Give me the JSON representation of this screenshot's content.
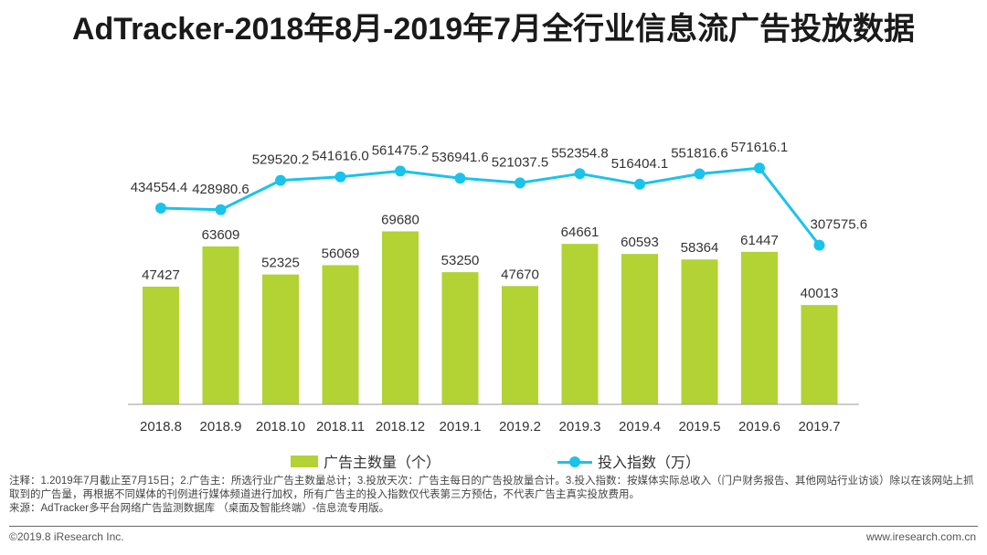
{
  "title": "AdTracker-2018年8月-2019年7月全行业信息流广告投放数据",
  "chart_data": {
    "type": "bar+line",
    "categories": [
      "2018.8",
      "2018.9",
      "2018.10",
      "2018.11",
      "2018.12",
      "2019.1",
      "2019.2",
      "2019.3",
      "2019.4",
      "2019.5",
      "2019.6",
      "2019.7"
    ],
    "series": [
      {
        "name": "广告主数量（个）",
        "type": "bar",
        "color": "#b3d234",
        "values": [
          47427,
          63609,
          52325,
          56069,
          69680,
          53250,
          47670,
          64661,
          60593,
          58364,
          61447,
          40013
        ],
        "labels": [
          "47427",
          "63609",
          "52325",
          "56069",
          "69680",
          "53250",
          "47670",
          "64661",
          "60593",
          "58364",
          "61447",
          "40013"
        ]
      },
      {
        "name": "投入指数（万）",
        "type": "line",
        "color": "#1ac3ec",
        "values": [
          434554.4,
          428980.6,
          529520.2,
          541616.0,
          561475.2,
          536941.6,
          521037.5,
          552354.8,
          516404.1,
          551816.6,
          571616.1,
          307575.6
        ],
        "labels": [
          "434554.4",
          "428980.6",
          "529520.2",
          "541616.0",
          "561475.2",
          "536941.6",
          "521037.5",
          "552354.8",
          "516404.1",
          "551816.6",
          "571616.1",
          "307575.6"
        ]
      }
    ],
    "legend_position": "bottom",
    "grid": false
  },
  "notes": [
    "注释：1.2019年7月截止至7月15日；2.广告主：所选行业广告主数量总计；3.投放天次：广告主每日的广告投放量合计。3.投入指数：按媒体实际总收入（门户财务报告、其他网站行业访谈）除以在该网站上抓取到的广告量，再根据不同媒体的刊例进行媒体频道进行加权，所有广告主的投入指数仅代表第三方预估，不代表广告主真实投放费用。",
    "来源：AdTracker多平台网络广告监测数据库 （桌面及智能终端）-信息流专用版。"
  ],
  "footer": {
    "copyright": "©2019.8 iResearch Inc.",
    "website": "www.iresearch.com.cn"
  }
}
